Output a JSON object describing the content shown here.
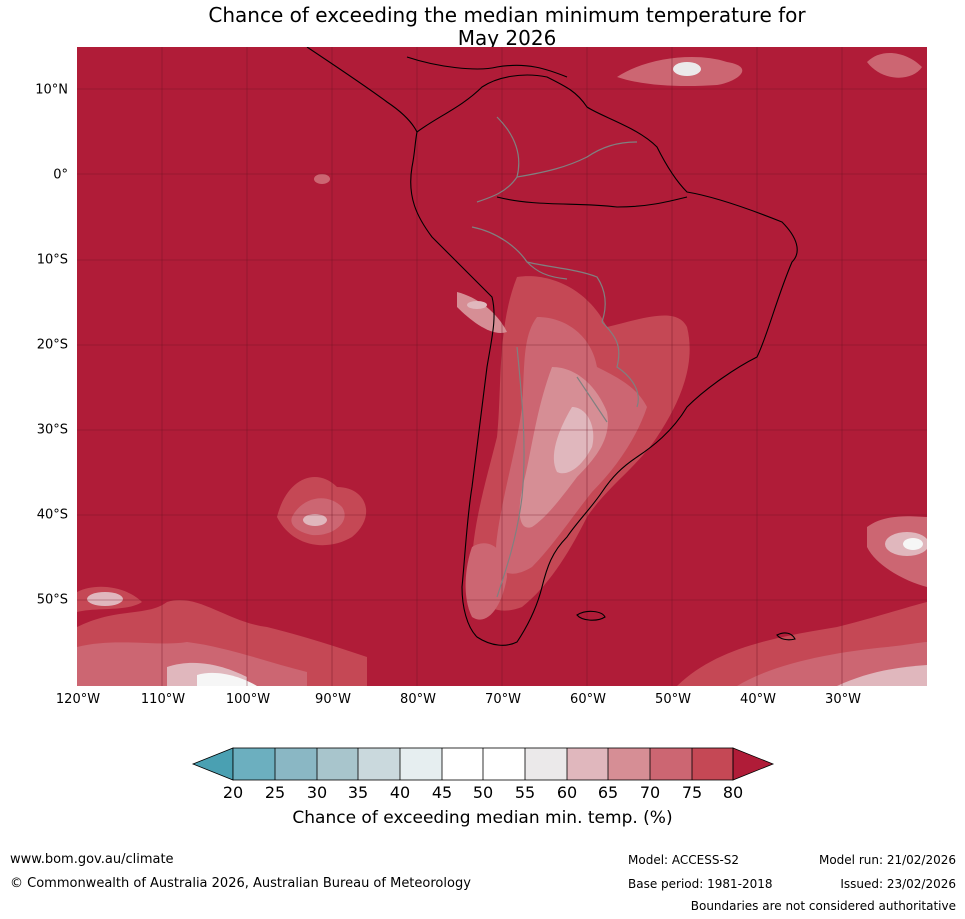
{
  "title_line1": "Chance of exceeding the median minimum temperature for",
  "title_line2": "May 2026",
  "map": {
    "lat_labels": [
      "10°N",
      "0°",
      "10°S",
      "20°S",
      "30°S",
      "40°S",
      "50°S"
    ],
    "lon_labels": [
      "120°W",
      "110°W",
      "100°W",
      "90°W",
      "80°W",
      "70°W",
      "60°W",
      "50°W",
      "40°W",
      "30°W"
    ],
    "extent": {
      "lon_min": -120,
      "lon_max": -20,
      "lat_min": -60,
      "lat_max": 15
    },
    "background_category": "80+",
    "colors": {
      "c80plus": "#b01c38",
      "c75": "#c54855",
      "c70": "#cc6672",
      "c65": "#d68e95",
      "c60": "#e0b7bd",
      "c55": "#ebe9ea",
      "c50": "#ffffff",
      "c45": "#f6f6f6",
      "c40": "#e6eef0",
      "c35": "#cad9dd",
      "c30": "#a8c5cc",
      "c25": "#8ab7c4",
      "c20": "#6cafbf",
      "below20": "#4aa0b2",
      "coast": "#000000",
      "border": "#808080",
      "grid": "#6e1424"
    }
  },
  "colorbar": {
    "ticks": [
      "20",
      "25",
      "30",
      "35",
      "40",
      "45",
      "50",
      "55",
      "60",
      "65",
      "70",
      "75",
      "80"
    ],
    "label": "Chance of exceeding median min. temp. (%)"
  },
  "footer": {
    "website": "www.bom.gov.au/climate",
    "copyright": "© Commonwealth of Australia 2026, Australian Bureau of Meteorology",
    "model": "Model: ACCESS-S2",
    "base_period": "Base period: 1981-2018",
    "model_run": "Model run: 21/02/2026",
    "issued": "Issued: 23/02/2026",
    "boundaries_note": "Boundaries are not considered authoritative"
  }
}
